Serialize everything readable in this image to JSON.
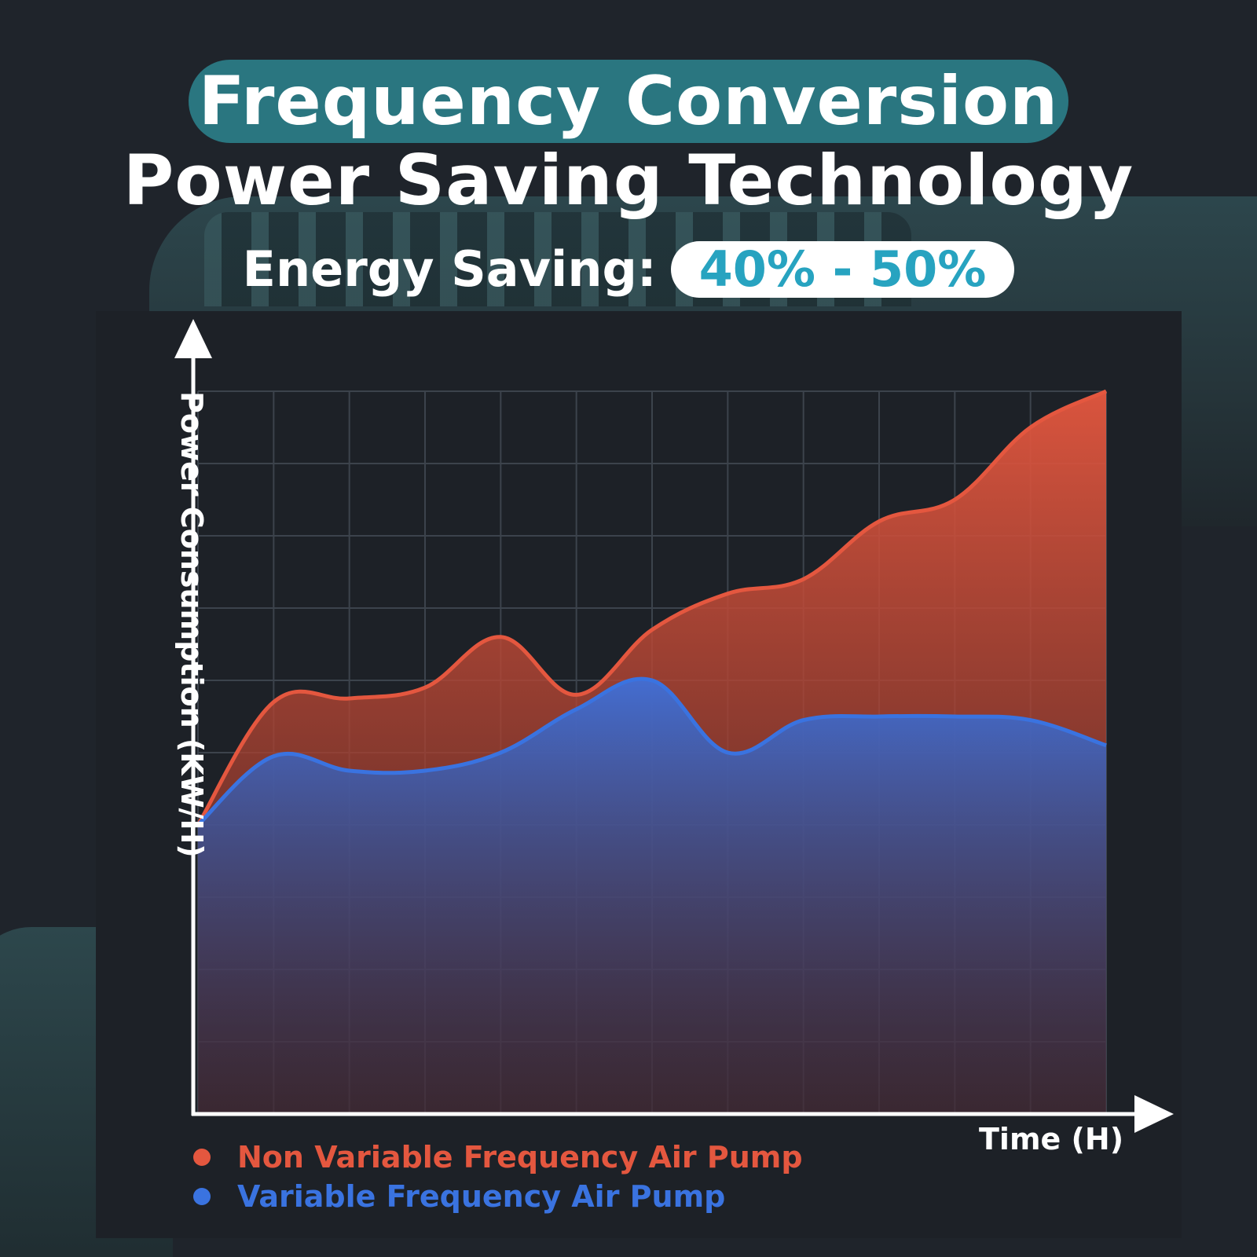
{
  "header": {
    "title": "Frequency Conversion",
    "subtitle": "Power Saving Technology",
    "saving_label": "Energy Saving:",
    "saving_value": "40% - 50%"
  },
  "colors": {
    "title_pill": "#2a7680",
    "saving_value": "#27a3c0",
    "non_variable": "#e4573f",
    "variable": "#3a73e0"
  },
  "chart_data": {
    "type": "area",
    "xlabel": "Time (H)",
    "ylabel": "Power Consumption (KW/H)",
    "x": [
      0,
      1,
      2,
      3,
      4,
      5,
      6,
      7,
      8,
      9,
      10,
      11,
      12
    ],
    "ylim": [
      0,
      10
    ],
    "grid": true,
    "legend_position": "bottom-left",
    "series": [
      {
        "name": "Non Variable Frequency Air Pump",
        "color": "#e4573f",
        "values": [
          4.0,
          5.7,
          5.75,
          5.9,
          6.6,
          5.8,
          6.7,
          7.2,
          7.4,
          8.2,
          8.5,
          9.5,
          10.0
        ]
      },
      {
        "name": "Variable Frequency Air Pump",
        "color": "#3a73e0",
        "values": [
          4.0,
          4.95,
          4.75,
          4.75,
          5.0,
          5.6,
          6.0,
          5.0,
          5.45,
          5.5,
          5.5,
          5.45,
          5.1
        ]
      }
    ]
  }
}
